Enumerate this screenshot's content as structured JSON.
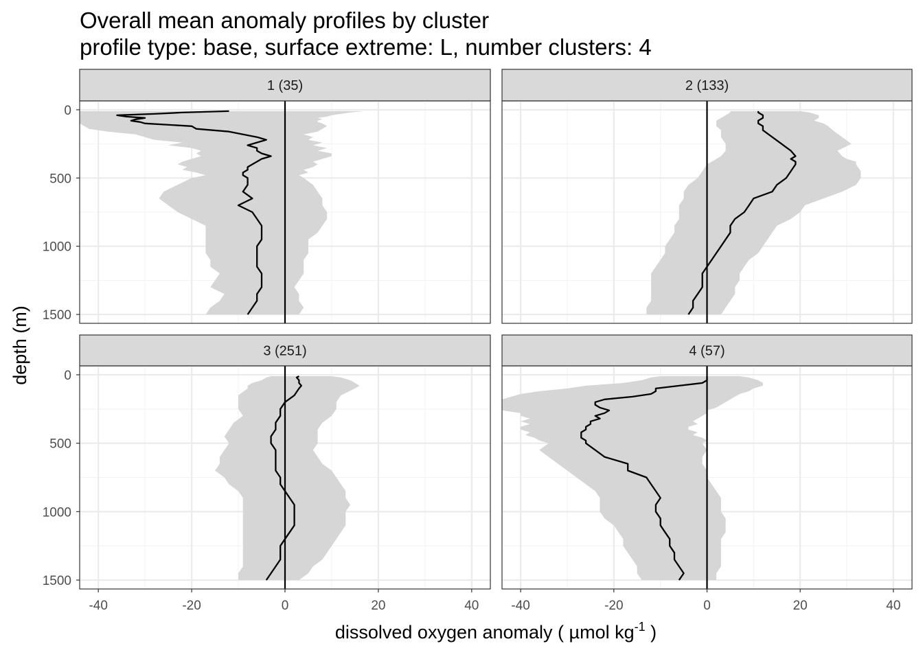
{
  "chart_data": {
    "type": "area",
    "title": "Overall mean anomaly profiles by cluster",
    "subtitle": "profile type: base, surface extreme: L, number clusters: 4",
    "xlabel_main": "dissolved oxygen anomaly ( µmol kg",
    "xlabel_sup": "-1",
    "xlabel_end": " )",
    "ylabel": "depth (m)",
    "xlim": [
      -44,
      44
    ],
    "ylim": [
      1565,
      -65
    ],
    "y_reversed": true,
    "x_ticks": [
      -40,
      -20,
      0,
      20,
      40
    ],
    "x_tick_labels": [
      "-40",
      "-20",
      "0",
      "20",
      "40"
    ],
    "y_ticks": [
      0,
      500,
      1000,
      1500
    ],
    "y_tick_labels": [
      "0",
      "500",
      "1000",
      "1500"
    ],
    "grid": true,
    "reference_line_x": 0,
    "panels": [
      {
        "label": "1 (35)",
        "depth": [
          10,
          20,
          30,
          40,
          50,
          60,
          70,
          80,
          90,
          100,
          120,
          140,
          160,
          180,
          200,
          220,
          240,
          260,
          280,
          300,
          320,
          340,
          360,
          380,
          400,
          420,
          440,
          460,
          480,
          500,
          550,
          600,
          650,
          700,
          750,
          800,
          850,
          900,
          950,
          1000,
          1050,
          1100,
          1150,
          1200,
          1250,
          1300,
          1350,
          1400,
          1450,
          1500
        ],
        "mean": [
          -12,
          -22,
          -28,
          -36,
          -34,
          -30,
          -32,
          -33,
          -31,
          -30,
          -20,
          -19,
          -12,
          -9,
          -6,
          -4,
          -6,
          -8,
          -6,
          -6,
          -5,
          -3,
          -5,
          -6,
          -7,
          -8,
          -8,
          -9,
          -9,
          -8,
          -8,
          -9,
          -7,
          -10,
          -7,
          -6,
          -5,
          -5,
          -5,
          -6,
          -6,
          -6,
          -6,
          -5,
          -5,
          -5,
          -6,
          -6,
          -7,
          -8
        ],
        "lower": [
          -44,
          -44,
          -44,
          -44,
          -44,
          -44,
          -44,
          -44,
          -44,
          -44,
          -43,
          -42,
          -38,
          -32,
          -30,
          -28,
          -22,
          -25,
          -20,
          -18,
          -19,
          -18,
          -20,
          -22,
          -23,
          -21,
          -22,
          -19,
          -17,
          -20,
          -23,
          -26,
          -27,
          -25,
          -23,
          -20,
          -17,
          -17,
          -17,
          -17,
          -17,
          -16,
          -16,
          -14,
          -15,
          -16,
          -13,
          -14,
          -16,
          -17
        ],
        "upper": [
          17,
          14,
          12,
          10,
          9,
          7,
          8,
          7,
          7,
          8,
          9,
          8,
          7,
          4,
          6,
          5,
          8,
          6,
          9,
          7,
          10,
          10,
          8,
          6,
          7,
          6,
          4,
          5,
          3,
          4,
          6,
          7,
          8,
          8,
          9,
          9,
          8,
          7,
          5,
          5,
          5,
          4,
          4,
          4,
          3,
          2,
          3,
          3,
          4,
          3
        ]
      },
      {
        "label": "2 (133)",
        "depth": [
          10,
          20,
          40,
          60,
          80,
          100,
          120,
          150,
          200,
          250,
          300,
          340,
          360,
          380,
          400,
          450,
          500,
          550,
          600,
          650,
          700,
          750,
          800,
          850,
          900,
          950,
          1000,
          1050,
          1100,
          1150,
          1200,
          1250,
          1300,
          1350,
          1400,
          1450,
          1500
        ],
        "mean": [
          11,
          11,
          12,
          12,
          11,
          11,
          12,
          12,
          14,
          16,
          18,
          19,
          18,
          19,
          19,
          18,
          17,
          15,
          14,
          10,
          9,
          8,
          6,
          5,
          5,
          4,
          3,
          2,
          1,
          0,
          -1,
          -1,
          -1,
          -2,
          -3,
          -3,
          -4
        ],
        "lower": [
          5,
          5,
          4,
          3,
          2,
          2,
          2,
          3,
          3,
          4,
          4,
          3,
          2,
          1,
          0,
          -1,
          -2,
          -4,
          -5,
          -5,
          -6,
          -6,
          -6,
          -7,
          -7,
          -8,
          -9,
          -9,
          -10,
          -11,
          -12,
          -12,
          -12,
          -12,
          -12,
          -13,
          -13
        ],
        "upper": [
          20,
          22,
          24,
          24,
          23,
          25,
          26,
          27,
          29,
          31,
          28,
          29,
          30,
          32,
          32,
          33,
          33,
          32,
          29,
          25,
          21,
          20,
          18,
          15,
          14,
          13,
          12,
          11,
          9,
          8,
          7,
          7,
          6,
          6,
          5,
          4,
          3
        ]
      },
      {
        "label": "3 (251)",
        "depth": [
          10,
          20,
          40,
          60,
          80,
          100,
          150,
          200,
          250,
          300,
          350,
          400,
          450,
          500,
          550,
          600,
          650,
          700,
          750,
          800,
          850,
          900,
          950,
          1000,
          1050,
          1100,
          1150,
          1200,
          1250,
          1300,
          1350,
          1400,
          1450,
          1500
        ],
        "mean": [
          3,
          2.5,
          3,
          3,
          3.5,
          3,
          2,
          0,
          -1,
          -1,
          -2,
          -2,
          -3,
          -3,
          -2,
          -2,
          -2,
          -2,
          -1,
          -1,
          0,
          1,
          2,
          2,
          2,
          2,
          1,
          0,
          -1,
          -1,
          -1,
          -2,
          -3,
          -4
        ],
        "lower": [
          -3,
          -4,
          -5,
          -7,
          -8,
          -8,
          -10,
          -10,
          -10,
          -9,
          -11,
          -12,
          -13,
          -12,
          -13,
          -14,
          -14,
          -15,
          -13,
          -12,
          -10,
          -9,
          -9,
          -9,
          -9,
          -9,
          -9,
          -9,
          -9,
          -9,
          -9,
          -9,
          -10,
          -10
        ],
        "upper": [
          10,
          12,
          14,
          15,
          16,
          15,
          12,
          11,
          11,
          10,
          8,
          7,
          7,
          7,
          6,
          7,
          8,
          10,
          11,
          12,
          13,
          13,
          14,
          13,
          13,
          13,
          12,
          11,
          10,
          9,
          8,
          6,
          5,
          3
        ]
      },
      {
        "label": "4 (57)",
        "depth": [
          10,
          20,
          40,
          60,
          80,
          100,
          120,
          140,
          160,
          180,
          200,
          220,
          240,
          260,
          280,
          300,
          320,
          340,
          360,
          380,
          400,
          420,
          440,
          460,
          480,
          500,
          550,
          600,
          650,
          700,
          750,
          800,
          850,
          900,
          950,
          1000,
          1050,
          1100,
          1150,
          1200,
          1250,
          1300,
          1350,
          1400,
          1450,
          1500
        ],
        "mean": [
          0,
          0,
          0,
          -1,
          -6,
          -11,
          -11,
          -12,
          -16,
          -22,
          -24,
          -24,
          -23,
          -21,
          -22,
          -24,
          -23,
          -25,
          -25,
          -26,
          -26,
          -27,
          -27,
          -27,
          -26,
          -26,
          -24,
          -22,
          -17,
          -17,
          -13,
          -12,
          -11,
          -10,
          -11,
          -11,
          -10,
          -10,
          -9,
          -8,
          -8,
          -7,
          -7,
          -6,
          -5,
          -6
        ],
        "lower": [
          -10,
          -12,
          -14,
          -18,
          -26,
          -30,
          -36,
          -40,
          -42,
          -44,
          -44,
          -44,
          -44,
          -44,
          -40,
          -40,
          -38,
          -40,
          -38,
          -40,
          -40,
          -38,
          -39,
          -37,
          -36,
          -34,
          -36,
          -34,
          -32,
          -30,
          -28,
          -26,
          -24,
          -23,
          -23,
          -23,
          -22,
          -20,
          -19,
          -18,
          -18,
          -17,
          -16,
          -15,
          -15,
          -14
        ],
        "upper": [
          7,
          9,
          11,
          12,
          12,
          10,
          9,
          7,
          6,
          5,
          4,
          3,
          2,
          0,
          0,
          -1,
          -2,
          -3,
          -2,
          -4,
          -4,
          -2,
          -3,
          -1,
          0,
          -1,
          0,
          -1,
          -1,
          0,
          0,
          1,
          2,
          3,
          3,
          3,
          4,
          4,
          4,
          3,
          3,
          3,
          3,
          3,
          2,
          2
        ]
      }
    ]
  }
}
